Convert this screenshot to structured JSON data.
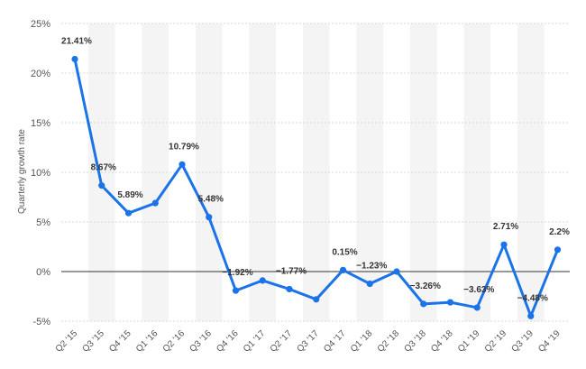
{
  "chart_data": {
    "type": "line",
    "title": "",
    "xlabel": "",
    "ylabel": "Quarterly growth rate",
    "ylim": [
      -5,
      25
    ],
    "yticks": [
      {
        "value": 25,
        "label": "25%"
      },
      {
        "value": 20,
        "label": "20%"
      },
      {
        "value": 15,
        "label": "15%"
      },
      {
        "value": 10,
        "label": "10%"
      },
      {
        "value": 5,
        "label": "5%"
      },
      {
        "value": 0,
        "label": "0%"
      },
      {
        "value": -5,
        "label": "-5%"
      }
    ],
    "grid": true,
    "color": "#1a73e8",
    "categories": [
      "Q2 '15",
      "Q3 '15",
      "Q4 '15",
      "Q1 '16",
      "Q2 '16",
      "Q3 '16",
      "Q4 '16",
      "Q1 '17",
      "Q2 '17",
      "Q3 '17",
      "Q4 '17",
      "Q1 '18",
      "Q2 '18",
      "Q3 '18",
      "Q4 '18",
      "Q1 '19",
      "Q2 '19",
      "Q3 '19",
      "Q4 '19"
    ],
    "values": [
      21.41,
      8.67,
      5.89,
      6.9,
      10.79,
      5.48,
      -1.92,
      -0.9,
      -1.77,
      -2.8,
      0.15,
      -1.23,
      0.0,
      -3.26,
      -3.1,
      -3.63,
      2.71,
      -4.48,
      2.2
    ],
    "data_labels": [
      {
        "index": 0,
        "text": "21.41%"
      },
      {
        "index": 1,
        "text": "8.67%"
      },
      {
        "index": 2,
        "text": "5.89%"
      },
      {
        "index": 4,
        "text": "10.79%"
      },
      {
        "index": 5,
        "text": "5.48%"
      },
      {
        "index": 6,
        "text": "−1.92%"
      },
      {
        "index": 8,
        "text": "−1.77%"
      },
      {
        "index": 10,
        "text": "0.15%"
      },
      {
        "index": 11,
        "text": "−1.23%"
      },
      {
        "index": 13,
        "text": "−3.26%"
      },
      {
        "index": 15,
        "text": "−3.63%"
      },
      {
        "index": 16,
        "text": "2.71%"
      },
      {
        "index": 17,
        "text": "−4.48%"
      },
      {
        "index": 18,
        "text": "2.2%"
      }
    ]
  }
}
